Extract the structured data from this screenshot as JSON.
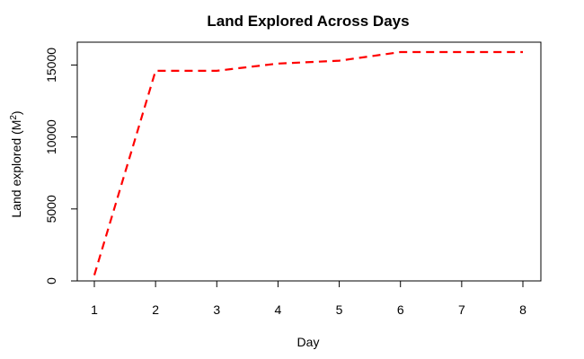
{
  "chart_data": {
    "type": "line",
    "title": "Land Explored Across Days",
    "xlabel": "Day",
    "ylabel_main": "Land explored (M",
    "ylabel_sup": "2",
    "ylabel_close": ")",
    "x": [
      1,
      2,
      3,
      4,
      5,
      6,
      7,
      8
    ],
    "series": [
      {
        "color": "#ff0000",
        "line_style": "dashed",
        "values": [
          400,
          14600,
          14600,
          15100,
          15300,
          15900,
          15900,
          15900
        ]
      }
    ],
    "xlim": [
      1,
      8
    ],
    "ylim": [
      0,
      15900
    ],
    "x_ticks": [
      1,
      2,
      3,
      4,
      5,
      6,
      7,
      8
    ],
    "y_ticks": [
      0,
      5000,
      10000,
      15000
    ],
    "grid": false,
    "legend": "none"
  }
}
